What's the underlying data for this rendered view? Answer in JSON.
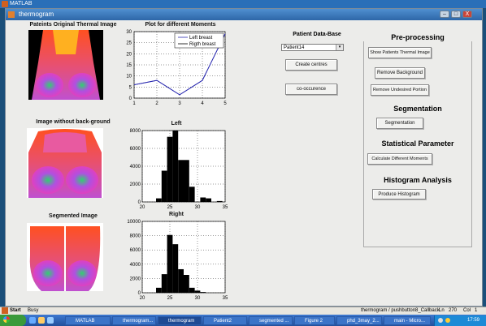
{
  "matlab_window": {
    "title": "MATLAB"
  },
  "window": {
    "title": "thermogram",
    "controls": [
      "–",
      "□",
      "X"
    ]
  },
  "images": {
    "original_title": "Pateints Original Thermal Image",
    "no_background_title": "Image without back-ground",
    "segmented_title": "Segmented Image"
  },
  "plot": {
    "title": "Plot for different Moments",
    "legend": [
      "Left breast",
      "Rigth breast"
    ],
    "x_ticks": [
      "1",
      "2",
      "3",
      "4",
      "5"
    ],
    "y_ticks": [
      "0",
      "5",
      "10",
      "15",
      "20",
      "25",
      "30"
    ]
  },
  "hist_left": {
    "title": "Left",
    "x_ticks": [
      "20",
      "25",
      "30",
      "35"
    ],
    "y_ticks": [
      "0",
      "2000",
      "4000",
      "6000",
      "8000"
    ]
  },
  "hist_right": {
    "title": "Right",
    "x_ticks": [
      "20",
      "25",
      "30",
      "35"
    ],
    "y_ticks": [
      "0",
      "2000",
      "4000",
      "6000",
      "8000",
      "10000"
    ]
  },
  "chart_data": [
    {
      "type": "line",
      "title": "Plot for different Moments",
      "x": [
        1,
        2,
        3,
        4,
        5
      ],
      "series": [
        {
          "name": "Left breast",
          "values": [
            6,
            8,
            1.5,
            8,
            29
          ]
        },
        {
          "name": "Rigth breast",
          "values": [
            6,
            8,
            1.5,
            8,
            29
          ]
        }
      ],
      "xlim": [
        1,
        5
      ],
      "ylim": [
        0,
        30
      ],
      "grid": true,
      "legend": "top-right"
    },
    {
      "type": "bar",
      "title": "Left",
      "x": [
        23,
        24,
        25,
        26,
        27,
        28,
        29,
        31,
        32,
        34
      ],
      "values": [
        400,
        3500,
        7300,
        8000,
        4700,
        4700,
        1700,
        500,
        400,
        100
      ],
      "xlim": [
        20,
        35
      ],
      "ylim": [
        0,
        8000
      ],
      "grid": true
    },
    {
      "type": "bar",
      "title": "Right",
      "x": [
        23,
        24,
        25,
        26,
        27,
        28,
        29,
        30,
        31
      ],
      "values": [
        700,
        2600,
        8100,
        6800,
        3300,
        2500,
        700,
        300,
        100
      ],
      "xlim": [
        20,
        35
      ],
      "ylim": [
        0,
        10000
      ],
      "grid": true
    }
  ],
  "database": {
    "title": "Patient Data-Base",
    "selected": "Patient14",
    "create_centres": "Create centres",
    "co_occurence": "co-occurence"
  },
  "preprocessing": {
    "title": "Pre-processing",
    "show": "Show Patients Thermal Image",
    "remove_bg": "Remove Background",
    "remove_undesired": "Remove Undesired Portion"
  },
  "segmentation": {
    "title": "Segmentation",
    "button": "Segmentation"
  },
  "statistical": {
    "title": "Statistical Parameter",
    "button": "Calculate Different Moments"
  },
  "histogram": {
    "title": "Histogram Analysis",
    "button": "Produce Histogram"
  },
  "status": {
    "busy": "Busy",
    "callback": "thermogram / pushbutton8_Callback",
    "ln_label": "Ln",
    "ln": "270",
    "col_label": "Col",
    "col": "1"
  },
  "taskbar": {
    "start": "Start",
    "items": [
      "MATLAB",
      "thermogram...",
      "thermogram",
      "Patient2",
      "segmented ...",
      "Figure 2",
      "phd_3may_2...",
      "main - Micro..."
    ],
    "clock": "17:59"
  }
}
